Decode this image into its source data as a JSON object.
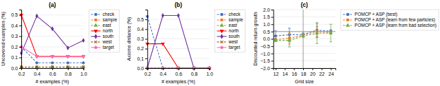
{
  "chart_data": [
    {
      "type": "line",
      "title": "(a)",
      "x_label": "# examples (%)",
      "y_label": "Uncovered examples (%)",
      "x": [
        0.2,
        0.4,
        0.6,
        0.8,
        1.0
      ],
      "xlim": [
        0.2,
        1.0
      ],
      "ylim": [
        0.0,
        0.55
      ],
      "xticks": [
        0.2,
        0.4,
        0.6,
        0.8,
        {
          "value": 1.0,
          "label": "1.0"
        }
      ],
      "yticks": [
        {
          "value": 0.0,
          "label": "0.0"
        },
        0.1,
        0.2,
        0.3,
        0.4,
        0.5
      ],
      "grid": "y",
      "legend": "right",
      "series": [
        {
          "name": "check",
          "color": "#4472C4",
          "marker": "circle",
          "line_style": "dashed",
          "values": [
            0.2,
            0.05,
            0.05,
            0.05,
            0.05
          ]
        },
        {
          "name": "sample",
          "color": "#ED7D31",
          "marker": "square",
          "line_style": "dashed",
          "values": [
            0.01,
            0.01,
            0.01,
            0.01,
            0.01
          ]
        },
        {
          "name": "east",
          "color": "#70AD47",
          "marker": "triangle-up",
          "line_style": "dashed",
          "values": [
            0.01,
            0.01,
            0.01,
            0.01,
            0.01
          ]
        },
        {
          "name": "north",
          "color": "#FF0000",
          "marker": "triangle-down",
          "line_style": "solid",
          "values": [
            0.5,
            0.11,
            0.11,
            0.11,
            0.11
          ]
        },
        {
          "name": "south",
          "color": "#7030A0",
          "marker": "diamond",
          "line_style": "solid",
          "values": [
            0.14,
            0.49,
            0.37,
            0.19,
            0.26
          ]
        },
        {
          "name": "west",
          "color": "#833C00",
          "marker": "x",
          "line_style": "dashed",
          "values": [
            0.01,
            0.01,
            0.01,
            0.01,
            0.01
          ]
        },
        {
          "name": "target",
          "color": "#FF69B4",
          "marker": "pentagon",
          "line_style": "solid",
          "values": [
            0.2,
            0.11,
            0.11,
            0.11,
            0.11
          ]
        }
      ]
    },
    {
      "type": "line",
      "title": "(b)",
      "x_label": "# examples (%)",
      "y_label": "Axioms distance (%)",
      "x": [
        0.2,
        0.4,
        0.6,
        0.8,
        1.0
      ],
      "xlim": [
        0.2,
        1.0
      ],
      "ylim": [
        0.0,
        0.6
      ],
      "xticks": [
        0.2,
        0.4,
        0.6,
        0.8,
        {
          "value": 1.0,
          "label": "1.0"
        }
      ],
      "yticks": [
        {
          "value": 0.0,
          "label": "0.0"
        },
        0.1,
        0.2,
        0.3,
        0.4,
        0.5
      ],
      "grid": "y",
      "legend": "right",
      "series": [
        {
          "name": "check",
          "color": "#4472C4",
          "marker": "circle",
          "line_style": "dashed",
          "values": [
            0.53,
            0.0,
            0.0,
            0.0,
            0.0
          ]
        },
        {
          "name": "sample",
          "color": "#ED7D31",
          "marker": "square",
          "line_style": "dashed",
          "values": [
            0.0,
            0.0,
            0.0,
            0.0,
            0.0
          ]
        },
        {
          "name": "east",
          "color": "#70AD47",
          "marker": "triangle-up",
          "line_style": "dashed",
          "values": [
            0.0,
            0.0,
            0.0,
            0.0,
            0.0
          ]
        },
        {
          "name": "north",
          "color": "#FF0000",
          "marker": "triangle-down",
          "line_style": "solid",
          "values": [
            0.25,
            0.25,
            0.0,
            0.0,
            0.0
          ]
        },
        {
          "name": "south",
          "color": "#7030A0",
          "marker": "diamond",
          "line_style": "solid",
          "values": [
            0.0,
            0.54,
            0.54,
            0.0,
            0.0
          ]
        },
        {
          "name": "west",
          "color": "#833C00",
          "marker": "x",
          "line_style": "dashed",
          "values": [
            0.0,
            0.0,
            0.0,
            0.0,
            0.0
          ]
        },
        {
          "name": "target",
          "color": "#FF69B4",
          "marker": "pentagon",
          "line_style": "solid",
          "values": [
            0.0,
            0.0,
            0.0,
            0.0,
            0.0
          ]
        }
      ]
    },
    {
      "type": "line",
      "title": "(c)",
      "x_label": "Grid size",
      "y_label": "Discounted return growth",
      "x": [
        12,
        15,
        18,
        21,
        24
      ],
      "xlim": [
        11.5,
        25
      ],
      "ylim": [
        -2.0,
        2.0
      ],
      "xticks": [
        12,
        14,
        16,
        18,
        20,
        22,
        24
      ],
      "yticks": [
        {
          "value": -2.0,
          "label": "−2.0"
        },
        {
          "value": -1.5,
          "label": "−1.5"
        },
        {
          "value": -1.0,
          "label": "−1.0"
        },
        {
          "value": -0.5,
          "label": "−0.5"
        },
        {
          "value": 0.0,
          "label": "0.0"
        },
        0.5,
        {
          "value": 1.0,
          "label": "1.0"
        },
        1.5,
        {
          "value": 2.0,
          "label": "2.0"
        }
      ],
      "vline": 18,
      "hline": 0.5,
      "grid": "y",
      "legend": "right",
      "series": [
        {
          "name": "POMCP + ASP (best)",
          "color": "#4472C4",
          "marker": "circle",
          "line_style": "dashed",
          "values": [
            0.2,
            0.28,
            0.3,
            0.6,
            0.52
          ],
          "errors": [
            0.35,
            0.45,
            0.1,
            0.5,
            0.1
          ]
        },
        {
          "name": "POMCP + ASP (learn from few particles)",
          "color": "#ED7D31",
          "marker": "square",
          "line_style": "dashed",
          "values": [
            -0.05,
            0.05,
            0.25,
            0.5,
            0.42
          ],
          "errors": [
            0.1,
            0.4,
            0.1,
            0.35,
            0.1
          ]
        },
        {
          "name": "POMCP + ASP (learn from bad selection)",
          "color": "#70AD47",
          "marker": "triangle-up",
          "line_style": "dashed",
          "values": [
            -0.1,
            -0.1,
            0.2,
            0.38,
            0.4
          ],
          "errors": [
            0.1,
            0.45,
            0.1,
            0.7,
            0.6
          ]
        }
      ]
    }
  ]
}
